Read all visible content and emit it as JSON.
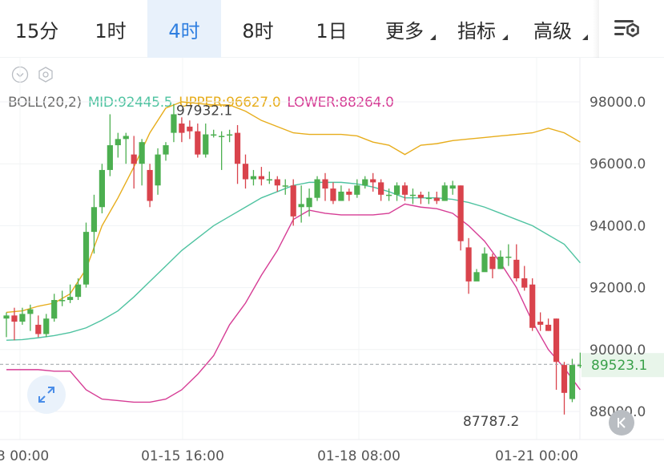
{
  "tabs": [
    {
      "label": "15分",
      "active": false
    },
    {
      "label": "1时",
      "active": false
    },
    {
      "label": "4时",
      "active": true
    },
    {
      "label": "8时",
      "active": false
    },
    {
      "label": "1日",
      "active": false
    },
    {
      "label": "更多",
      "active": false,
      "dropdown": true
    },
    {
      "label": "指标",
      "active": false,
      "dropdown": true
    },
    {
      "label": "高级",
      "active": false,
      "dropdown": true
    }
  ],
  "legend": {
    "name": "BOLL(20,2)",
    "mid": "MID:92445.5",
    "upper": "UPPER:96627.0",
    "lower": "LOWER:88264.0"
  },
  "colors": {
    "up": "#4caf50",
    "down": "#d9434c",
    "mid": "#4fc3a1",
    "upper": "#e7ad1c",
    "lower": "#d63d95",
    "active_tab": "#2f7fe0"
  },
  "icons": {
    "settings": "chart-settings-icon",
    "collapse": "chevron-down-circle-icon",
    "hexagon": "hexagon-settings-icon",
    "expand": "expand-arrows-icon",
    "back": "chevron-left-icon"
  },
  "chart_data": {
    "type": "candlestick",
    "yticks": [
      "98000.0",
      "96000.0",
      "94000.0",
      "92000.0",
      "90000.0",
      "88000.0"
    ],
    "xticks": [
      "3 00:00",
      "01-15 16:00",
      "01-18 08:00",
      "01-21 00:00"
    ],
    "last_price": "89523.1",
    "high_label": "97932.1",
    "low_label": "87787.2",
    "ylim": [
      87300,
      98700
    ],
    "candles": [
      [
        91000,
        91100,
        91200,
        90400
      ],
      [
        91100,
        90900,
        91350,
        90300
      ],
      [
        90900,
        91150,
        91350,
        90800
      ],
      [
        91150,
        91300,
        91450,
        90600
      ],
      [
        90800,
        90500,
        91100,
        90400
      ],
      [
        90500,
        91000,
        91150,
        90400
      ],
      [
        91000,
        91600,
        91800,
        90900
      ],
      [
        91600,
        91600,
        91900,
        91400
      ],
      [
        91600,
        91700,
        92100,
        91500
      ],
      [
        91700,
        92100,
        92300,
        91600
      ],
      [
        92100,
        93800,
        94100,
        92000
      ],
      [
        93800,
        94600,
        95000,
        93100
      ],
      [
        94600,
        95800,
        96000,
        94400
      ],
      [
        95800,
        96600,
        97600,
        95600
      ],
      [
        96600,
        96800,
        97000,
        96200
      ],
      [
        96800,
        96900,
        97000,
        96000
      ],
      [
        96300,
        96000,
        96900,
        95200
      ],
      [
        96000,
        96700,
        96800,
        95300
      ],
      [
        95800,
        94800,
        96000,
        94600
      ],
      [
        95300,
        96300,
        96500,
        95000
      ],
      [
        96300,
        96600,
        96700,
        96100
      ],
      [
        97000,
        97600,
        97932,
        96700
      ],
      [
        97300,
        97000,
        97500,
        96700
      ],
      [
        97200,
        97050,
        97400,
        96800
      ],
      [
        97050,
        96300,
        97300,
        96200
      ],
      [
        96300,
        96950,
        97300,
        96200
      ],
      [
        96950,
        96950,
        97100,
        96850
      ],
      [
        96900,
        96900,
        97050,
        95800
      ],
      [
        96950,
        96950,
        97100,
        96700
      ],
      [
        97000,
        96000,
        97250,
        95350
      ],
      [
        96000,
        95500,
        96300,
        95200
      ],
      [
        95500,
        95600,
        95800,
        95300
      ],
      [
        95600,
        95500,
        95900,
        95300
      ],
      [
        95500,
        95500,
        95750,
        95350
      ],
      [
        95500,
        95300,
        95600,
        95100
      ],
      [
        95300,
        95300,
        95500,
        95000
      ],
      [
        95300,
        94300,
        95500,
        94000
      ],
      [
        94600,
        94700,
        95300,
        94100
      ],
      [
        94600,
        94900,
        95200,
        94300
      ],
      [
        94900,
        95500,
        95600,
        94800
      ],
      [
        95500,
        95200,
        95700,
        94800
      ],
      [
        95200,
        94800,
        95400,
        94700
      ],
      [
        94800,
        95100,
        95300,
        94800
      ],
      [
        95100,
        95000,
        95200,
        94800
      ],
      [
        95000,
        95300,
        95500,
        94900
      ],
      [
        95300,
        95500,
        95600,
        95200
      ],
      [
        95500,
        95400,
        95700,
        95100
      ],
      [
        95400,
        95000,
        95500,
        94800
      ],
      [
        95000,
        95000,
        95200,
        94800
      ],
      [
        95000,
        95300,
        95400,
        94800
      ],
      [
        95300,
        95000,
        95400,
        94800
      ],
      [
        95000,
        95000,
        95200,
        94700
      ],
      [
        95000,
        94900,
        95100,
        94700
      ],
      [
        94900,
        94900,
        95100,
        94700
      ],
      [
        94900,
        94800,
        95100,
        94700
      ],
      [
        94800,
        95300,
        95400,
        94800
      ],
      [
        95200,
        95300,
        95450,
        95000
      ],
      [
        95300,
        93500,
        95300,
        93200
      ],
      [
        93300,
        92200,
        93600,
        91800
      ],
      [
        92200,
        92500,
        92600,
        92400
      ],
      [
        92500,
        93100,
        93300,
        92700
      ],
      [
        93000,
        92600,
        93100,
        92300
      ],
      [
        92600,
        93000,
        93200,
        92600
      ],
      [
        93000,
        93000,
        93400,
        92700
      ],
      [
        92900,
        92300,
        93400,
        92200
      ],
      [
        92300,
        92000,
        92700,
        91900
      ],
      [
        92100,
        90700,
        92300,
        90600
      ],
      [
        90900,
        90800,
        91200,
        90600
      ],
      [
        90800,
        90600,
        91000,
        90600
      ],
      [
        91000,
        89600,
        91000,
        88700
      ],
      [
        89500,
        88600,
        89600,
        87900
      ],
      [
        88400,
        89500,
        89700,
        88300
      ],
      [
        89500,
        89500,
        89900,
        89400
      ]
    ],
    "boll": {
      "x_index": [
        0,
        2,
        4,
        6,
        8,
        10,
        12,
        14,
        16,
        18,
        20,
        22,
        24,
        26,
        28,
        30,
        32,
        34,
        36,
        38,
        40,
        42,
        44,
        46,
        48,
        50,
        52,
        54,
        56,
        58,
        60,
        62,
        64,
        66,
        68,
        70,
        72
      ],
      "upper": [
        91200,
        91250,
        91400,
        91500,
        91800,
        92600,
        94000,
        94900,
        95900,
        97000,
        97800,
        98000,
        97950,
        97900,
        97900,
        97700,
        97400,
        97200,
        97000,
        96950,
        96950,
        96950,
        96900,
        96700,
        96600,
        96300,
        96600,
        96650,
        96750,
        96800,
        96850,
        96900,
        96950,
        97000,
        97150,
        97000,
        96700
      ],
      "mid": [
        90300,
        90320,
        90380,
        90450,
        90550,
        90700,
        90950,
        91250,
        91700,
        92200,
        92700,
        93200,
        93600,
        94000,
        94300,
        94600,
        94900,
        95100,
        95300,
        95400,
        95400,
        95400,
        95350,
        95250,
        95100,
        94900,
        94900,
        94900,
        94850,
        94750,
        94600,
        94400,
        94200,
        94000,
        93700,
        93400,
        92800
      ],
      "lower": [
        89350,
        89350,
        89350,
        89300,
        89300,
        88700,
        88400,
        88350,
        88300,
        88300,
        88400,
        88700,
        89200,
        89800,
        90800,
        91500,
        92400,
        93200,
        94200,
        94500,
        94400,
        94350,
        94350,
        94350,
        94400,
        94700,
        94600,
        94550,
        94400,
        94000,
        93500,
        92800,
        92000,
        90900,
        90000,
        89400,
        88700
      ]
    }
  }
}
